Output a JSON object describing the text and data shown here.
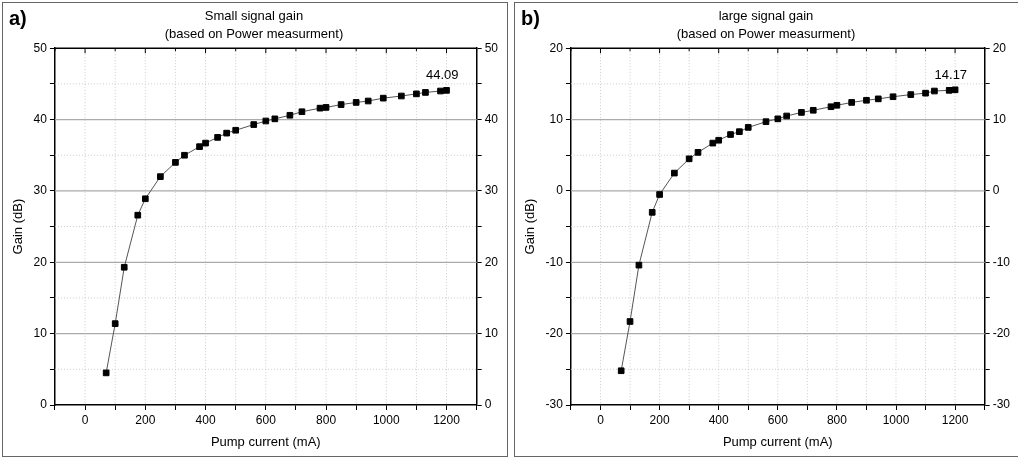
{
  "chart_data": [
    {
      "type": "line",
      "title": "Small signal gain",
      "subtitle": "(based on Power measurment)",
      "xlabel": "Pump current (mA)",
      "ylabel": "Gain (dB)",
      "annotations": [
        "a)",
        {
          "text": "44.09",
          "x": 1200,
          "y": 44.09
        }
      ],
      "x": [
        70,
        100,
        130,
        175,
        200,
        250,
        300,
        330,
        380,
        400,
        440,
        470,
        500,
        560,
        600,
        630,
        680,
        720,
        780,
        800,
        850,
        900,
        940,
        990,
        1050,
        1100,
        1130,
        1180,
        1200
      ],
      "series": [
        {
          "color": "#000000",
          "values": [
            4.5,
            11.4,
            19.3,
            26.6,
            28.9,
            32.0,
            34.0,
            35.0,
            36.2,
            36.7,
            37.5,
            38.1,
            38.5,
            39.3,
            39.8,
            40.1,
            40.6,
            41.1,
            41.6,
            41.7,
            42.1,
            42.4,
            42.6,
            43.0,
            43.3,
            43.6,
            43.8,
            44.0,
            44.09
          ]
        }
      ],
      "xlim": [
        -100,
        1300
      ],
      "xticks": [
        {
          "value": -100,
          "label": null
        },
        0,
        {
          "value": 100,
          "label": null
        },
        200,
        {
          "value": 300,
          "label": null
        },
        400,
        {
          "value": 500,
          "label": null
        },
        600,
        {
          "value": 700,
          "label": null
        },
        800,
        {
          "value": 900,
          "label": null
        },
        1000,
        {
          "value": 1100,
          "label": null
        },
        1200,
        {
          "value": 1300,
          "label": null
        }
      ],
      "ylim": [
        0,
        50
      ],
      "yticks": [
        0,
        {
          "value": 5,
          "label": null
        },
        10,
        {
          "value": 15,
          "label": null
        },
        20,
        {
          "value": 25,
          "label": null
        },
        30,
        {
          "value": 35,
          "label": null
        },
        40,
        {
          "value": 45,
          "label": null
        },
        50
      ],
      "y2lim": [
        0,
        50
      ],
      "y2ticks": [
        0,
        {
          "value": 5,
          "label": null
        },
        10,
        {
          "value": 15,
          "label": null
        },
        20,
        {
          "value": 25,
          "label": null
        },
        30,
        {
          "value": 35,
          "label": null
        },
        40,
        {
          "value": 45,
          "label": null
        },
        50
      ],
      "grid": true,
      "legend": false,
      "marker": "square",
      "line_style": "solid"
    },
    {
      "type": "line",
      "title": "large signal gain",
      "subtitle": "(based on Power measurment)",
      "xlabel": "Pump current (mA)",
      "ylabel": "Gain (dB)",
      "annotations": [
        "b)",
        {
          "text": "14.17",
          "x": 1200,
          "y": 14.17
        }
      ],
      "x": [
        70,
        100,
        130,
        175,
        200,
        250,
        300,
        330,
        380,
        400,
        440,
        470,
        500,
        560,
        600,
        630,
        680,
        720,
        780,
        800,
        850,
        900,
        940,
        990,
        1050,
        1100,
        1130,
        1180,
        1200
      ],
      "series": [
        {
          "color": "#000000",
          "values": [
            -25.2,
            -18.3,
            -10.4,
            -3.0,
            -0.5,
            2.5,
            4.5,
            5.4,
            6.7,
            7.1,
            7.9,
            8.3,
            8.9,
            9.7,
            10.1,
            10.5,
            11.0,
            11.3,
            11.8,
            12.0,
            12.4,
            12.7,
            12.9,
            13.2,
            13.5,
            13.7,
            14.0,
            14.1,
            14.17
          ]
        }
      ],
      "xlim": [
        -100,
        1300
      ],
      "xticks": [
        {
          "value": -100,
          "label": null
        },
        0,
        {
          "value": 100,
          "label": null
        },
        200,
        {
          "value": 300,
          "label": null
        },
        400,
        {
          "value": 500,
          "label": null
        },
        600,
        {
          "value": 700,
          "label": null
        },
        800,
        {
          "value": 900,
          "label": null
        },
        1000,
        {
          "value": 1100,
          "label": null
        },
        1200,
        {
          "value": 1300,
          "label": null
        }
      ],
      "ylim": [
        -30,
        20
      ],
      "yticks": [
        -30,
        {
          "value": -25,
          "label": null
        },
        -20,
        {
          "value": -15,
          "label": null
        },
        -10,
        {
          "value": -5,
          "label": null
        },
        0,
        {
          "value": 5,
          "label": null
        },
        10,
        {
          "value": 15,
          "label": null
        },
        20
      ],
      "y2lim": [
        -30,
        20
      ],
      "y2ticks": [
        -30,
        {
          "value": -25,
          "label": null
        },
        -20,
        {
          "value": -15,
          "label": null
        },
        -10,
        {
          "value": -5,
          "label": null
        },
        0,
        {
          "value": 5,
          "label": null
        },
        10,
        {
          "value": 15,
          "label": null
        },
        20
      ],
      "grid": true,
      "legend": false,
      "marker": "square",
      "line_style": "solid"
    }
  ]
}
